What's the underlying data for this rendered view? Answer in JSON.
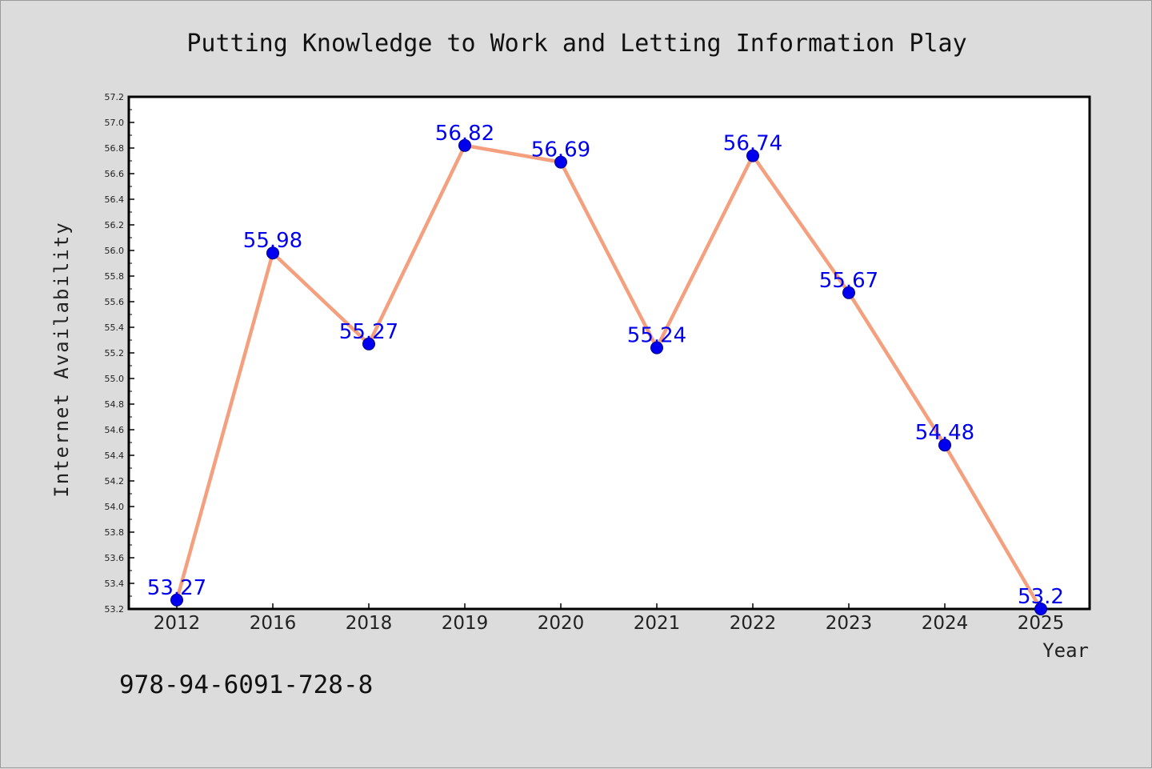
{
  "chart_data": {
    "type": "line",
    "title": "Putting Knowledge to Work and Letting Information Play",
    "xlabel": "Year",
    "ylabel": "Internet Availability",
    "categories": [
      "2012",
      "2016",
      "2018",
      "2019",
      "2020",
      "2021",
      "2022",
      "2023",
      "2024",
      "2025"
    ],
    "series": [
      {
        "values": [
          53.27,
          55.98,
          55.27,
          56.82,
          56.69,
          55.24,
          56.74,
          55.67,
          54.48,
          53.2
        ],
        "labels": [
          "53.27",
          "55.98",
          "55.27",
          "56.82",
          "56.69",
          "55.24",
          "56.74",
          "55.67",
          "54.48",
          "53.2"
        ],
        "line_color": "#f4a07e",
        "marker_color": "#0000ee"
      }
    ],
    "ylim": [
      53.2,
      57.2
    ],
    "yticks": [
      "53.2",
      "53.4",
      "53.6",
      "53.8",
      "54.0",
      "54.2",
      "54.4",
      "54.6",
      "54.8",
      "55.0",
      "55.2",
      "55.4",
      "55.6",
      "55.8",
      "56.0",
      "56.2",
      "56.4",
      "56.6",
      "56.8",
      "57.0",
      "57.2"
    ],
    "grid": false,
    "legend": "none"
  },
  "annotation": {
    "isbn": "978-94-6091-728-8"
  },
  "colors": {
    "background": "#dcdcdc",
    "plot_background": "#ffffff",
    "line": "#f4a07e",
    "marker": "#0000ee",
    "data_label": "#0000ee"
  }
}
